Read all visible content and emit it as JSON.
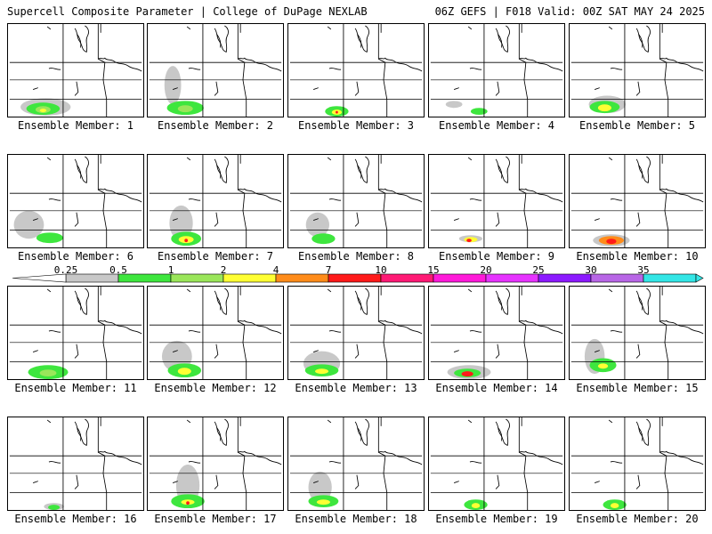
{
  "header": {
    "left": "Supercell Composite Parameter | College of DuPage NEXLAB",
    "right": "06Z GEFS | F018 Valid: 00Z SAT MAY 24 2025"
  },
  "panels": [
    {
      "label": "Ensemble Member: 1"
    },
    {
      "label": "Ensemble Member: 2"
    },
    {
      "label": "Ensemble Member: 3"
    },
    {
      "label": "Ensemble Member: 4"
    },
    {
      "label": "Ensemble Member: 5"
    },
    {
      "label": "Ensemble Member: 6"
    },
    {
      "label": "Ensemble Member: 7"
    },
    {
      "label": "Ensemble Member: 8"
    },
    {
      "label": "Ensemble Member: 9"
    },
    {
      "label": "Ensemble Member: 10"
    },
    {
      "label": "Ensemble Member: 11"
    },
    {
      "label": "Ensemble Member: 12"
    },
    {
      "label": "Ensemble Member: 13"
    },
    {
      "label": "Ensemble Member: 14"
    },
    {
      "label": "Ensemble Member: 15"
    },
    {
      "label": "Ensemble Member: 16"
    },
    {
      "label": "Ensemble Member: 17"
    },
    {
      "label": "Ensemble Member: 18"
    },
    {
      "label": "Ensemble Member: 19"
    },
    {
      "label": "Ensemble Member: 20"
    }
  ],
  "colorbar": {
    "labels": [
      "0.25",
      "0.5",
      "1",
      "2",
      "4",
      "7",
      "10",
      "15",
      "20",
      "25",
      "30",
      "35"
    ],
    "colors": [
      "#c8c8c8",
      "#3ee63e",
      "#9ae65a",
      "#ffff33",
      "#ff8c1a",
      "#ff1a1a",
      "#ff1a75",
      "#ff1ad9",
      "#e633ff",
      "#8c1aff",
      "#b866e6",
      "#33e6e6"
    ]
  }
}
